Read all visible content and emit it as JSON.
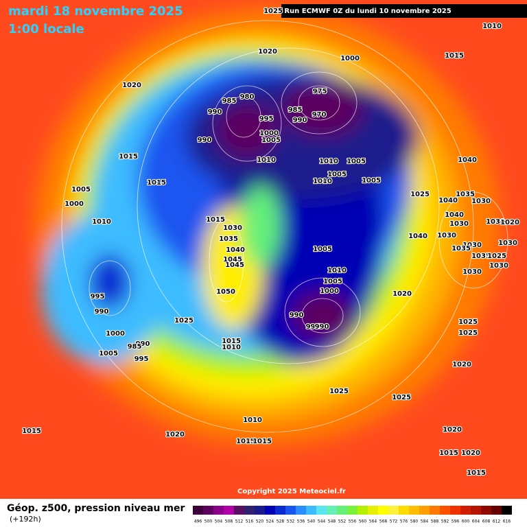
{
  "header": {
    "title": "mardi 18 novembre 2025",
    "subtitle": "1:00 locale",
    "run": "Run ECMWF 0Z du lundi 10 novembre 2025"
  },
  "isobar_labels": [
    1025,
    1010,
    1020,
    1000,
    1015,
    1020,
    975,
    980,
    985,
    985,
    970,
    990,
    990,
    995,
    1000,
    1005,
    990,
    1015,
    1010,
    1010,
    1005,
    1040,
    1005,
    1010,
    1005,
    1015,
    1005,
    1025,
    1035,
    1000,
    1040,
    1030,
    1010,
    1015,
    1030,
    1040,
    1030,
    1030,
    1020,
    1035,
    1040,
    1040,
    1030,
    1030,
    1030,
    1005,
    1035,
    1045,
    1045,
    1035,
    1025,
    1030,
    1010,
    1030,
    1005,
    1000,
    1050,
    995,
    1020,
    990,
    990,
    995,
    990,
    1025,
    1025,
    1000,
    1025,
    1015,
    990,
    985,
    1010,
    1005,
    995,
    1020,
    1025,
    1025,
    1010,
    1015,
    1020,
    1020,
    1015,
    1015,
    1015,
    1020,
    1015
  ],
  "copyright": "Copyright 2025 Meteociel.fr",
  "legend": {
    "title": "Géop. z500, pression niveau mer",
    "lead": "(+192h)",
    "levels": [
      496,
      500,
      504,
      508,
      512,
      516,
      520,
      524,
      528,
      532,
      536,
      540,
      544,
      548,
      552,
      556,
      560,
      564,
      568,
      572,
      576,
      580,
      584,
      588,
      592,
      596,
      600,
      604,
      608,
      612,
      616
    ],
    "colors": [
      "#3d0038",
      "#5c0060",
      "#8a008a",
      "#b000a8",
      "#5a1060",
      "#302070",
      "#1a1a8c",
      "#0000b4",
      "#0a2ad2",
      "#1a55f0",
      "#2a8cff",
      "#3cbcff",
      "#5ae6f0",
      "#64f0b4",
      "#64f078",
      "#78f03c",
      "#b4f000",
      "#e6f000",
      "#ffff00",
      "#fff03c",
      "#ffdc00",
      "#ffbe00",
      "#ffa000",
      "#ff7800",
      "#ff5000",
      "#f03200",
      "#d21e00",
      "#b41400",
      "#8c0a00",
      "#640000",
      "#000000"
    ]
  }
}
